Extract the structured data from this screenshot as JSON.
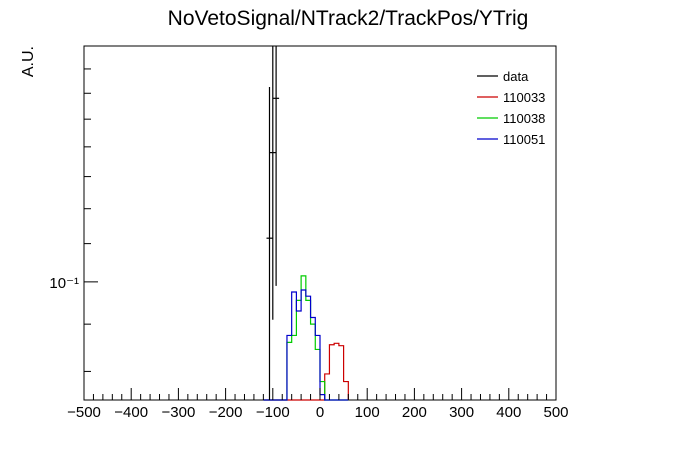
{
  "chart_data": {
    "type": "histogram",
    "title": "NoVetoSignal/NTrack2/TrackPos/YTrig",
    "xlabel": "",
    "ylabel": "A.U.",
    "xlim": [
      -500,
      500
    ],
    "ylim": [
      0.0745,
      0.18
    ],
    "y_scale": "log",
    "y_tick_label": "10⁻¹",
    "y_tick_value": 0.1,
    "x_ticks": [
      -500,
      -400,
      -300,
      -200,
      -100,
      0,
      100,
      200,
      300,
      400,
      500
    ],
    "x_tick_labels": [
      "−500",
      "−400",
      "−300",
      "−200",
      "−100",
      "0",
      "100",
      "200",
      "300",
      "400",
      "500"
    ],
    "grid": false,
    "legend_position": "top-right",
    "bin_edges": [
      -120,
      -110,
      -100,
      -90,
      -80,
      -70,
      -60,
      -50,
      -40,
      -30,
      -20,
      -10,
      0,
      10,
      20,
      30,
      40,
      50,
      60
    ],
    "series": [
      {
        "name": "data",
        "color": "#000000",
        "style": "error-bars",
        "points": [
          {
            "x": -107,
            "y": 0.1115,
            "err_low": 0.0375,
            "err_high": 0.051
          },
          {
            "x": -100,
            "y": 0.138,
            "err_low": 0.047,
            "err_high": 0.06
          },
          {
            "x": -93,
            "y": 0.158,
            "err_low": 0.059,
            "err_high": 0.04
          }
        ]
      },
      {
        "name": "110033",
        "color": "#cc0000",
        "style": "step",
        "values": [
          0,
          0,
          0,
          0,
          0,
          0,
          0,
          0,
          0,
          0,
          0,
          0,
          0,
          0.0795,
          0.0855,
          0.0858,
          0.0853,
          0.078,
          0
        ]
      },
      {
        "name": "110038",
        "color": "#00cc00",
        "style": "step",
        "values": [
          0,
          0,
          0,
          0,
          0,
          0.086,
          0.0875,
          0.0955,
          0.1015,
          0.0955,
          0.09,
          0.0845,
          0.078,
          0,
          0,
          0,
          0,
          0,
          0
        ]
      },
      {
        "name": "110051",
        "color": "#0000cc",
        "style": "step",
        "values": [
          0,
          0,
          0,
          0,
          0,
          0.0875,
          0.0975,
          0.093,
          0.098,
          0.0965,
          0.0915,
          0.0875,
          0.0755,
          0,
          0,
          0,
          0,
          0,
          0
        ]
      }
    ]
  }
}
